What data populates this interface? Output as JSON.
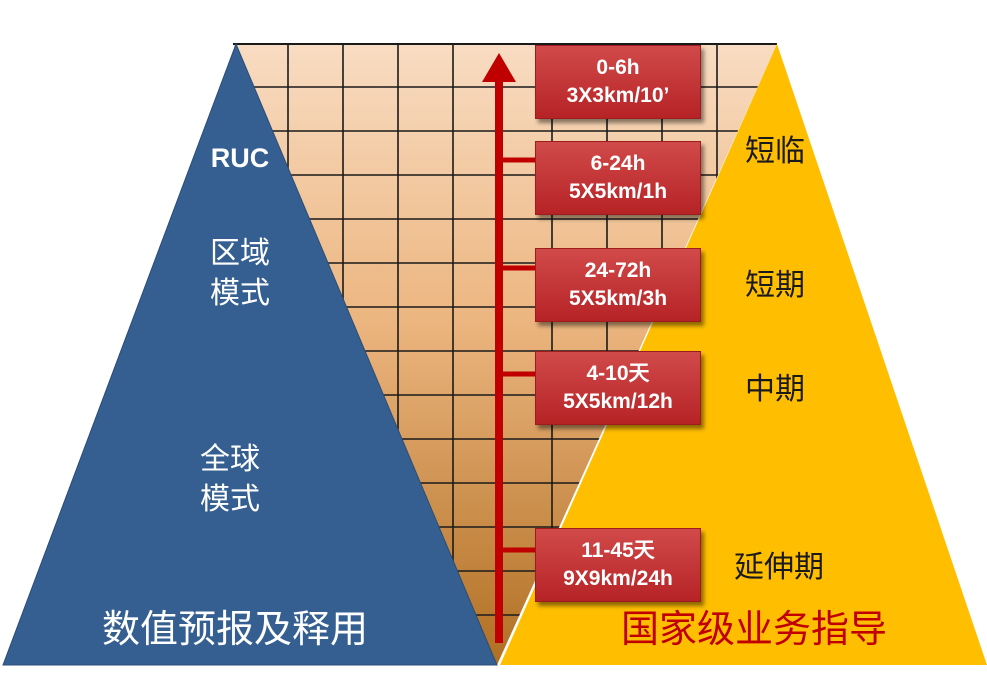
{
  "left_pyramid": {
    "labels": [
      {
        "id": "ruc",
        "text": "RUC"
      },
      {
        "id": "regional",
        "text": "区域\n模式"
      },
      {
        "id": "global",
        "text": "全球\n模式"
      }
    ],
    "bottom_label": "数值预报及释用",
    "color": "#355f91"
  },
  "right_pyramid": {
    "labels": [
      {
        "id": "short-nowcast",
        "text": "短临"
      },
      {
        "id": "short-range",
        "text": "短期"
      },
      {
        "id": "medium-range",
        "text": "中期"
      },
      {
        "id": "extended-range",
        "text": "延伸期"
      }
    ],
    "bottom_label": "国家级业务指导",
    "color": "#ffbf00",
    "bottom_label_color": "#c00000"
  },
  "timeline": {
    "color": "#c00000",
    "boxes": [
      {
        "range": "0-6h",
        "resolution": "3X3km/10’"
      },
      {
        "range": "6-24h",
        "resolution": "5X5km/1h"
      },
      {
        "range": "24-72h",
        "resolution": "5X5km/3h"
      },
      {
        "range": "4-10天",
        "resolution": "5X5km/12h"
      },
      {
        "range": "11-45天",
        "resolution": "9X9km/24h"
      }
    ]
  }
}
